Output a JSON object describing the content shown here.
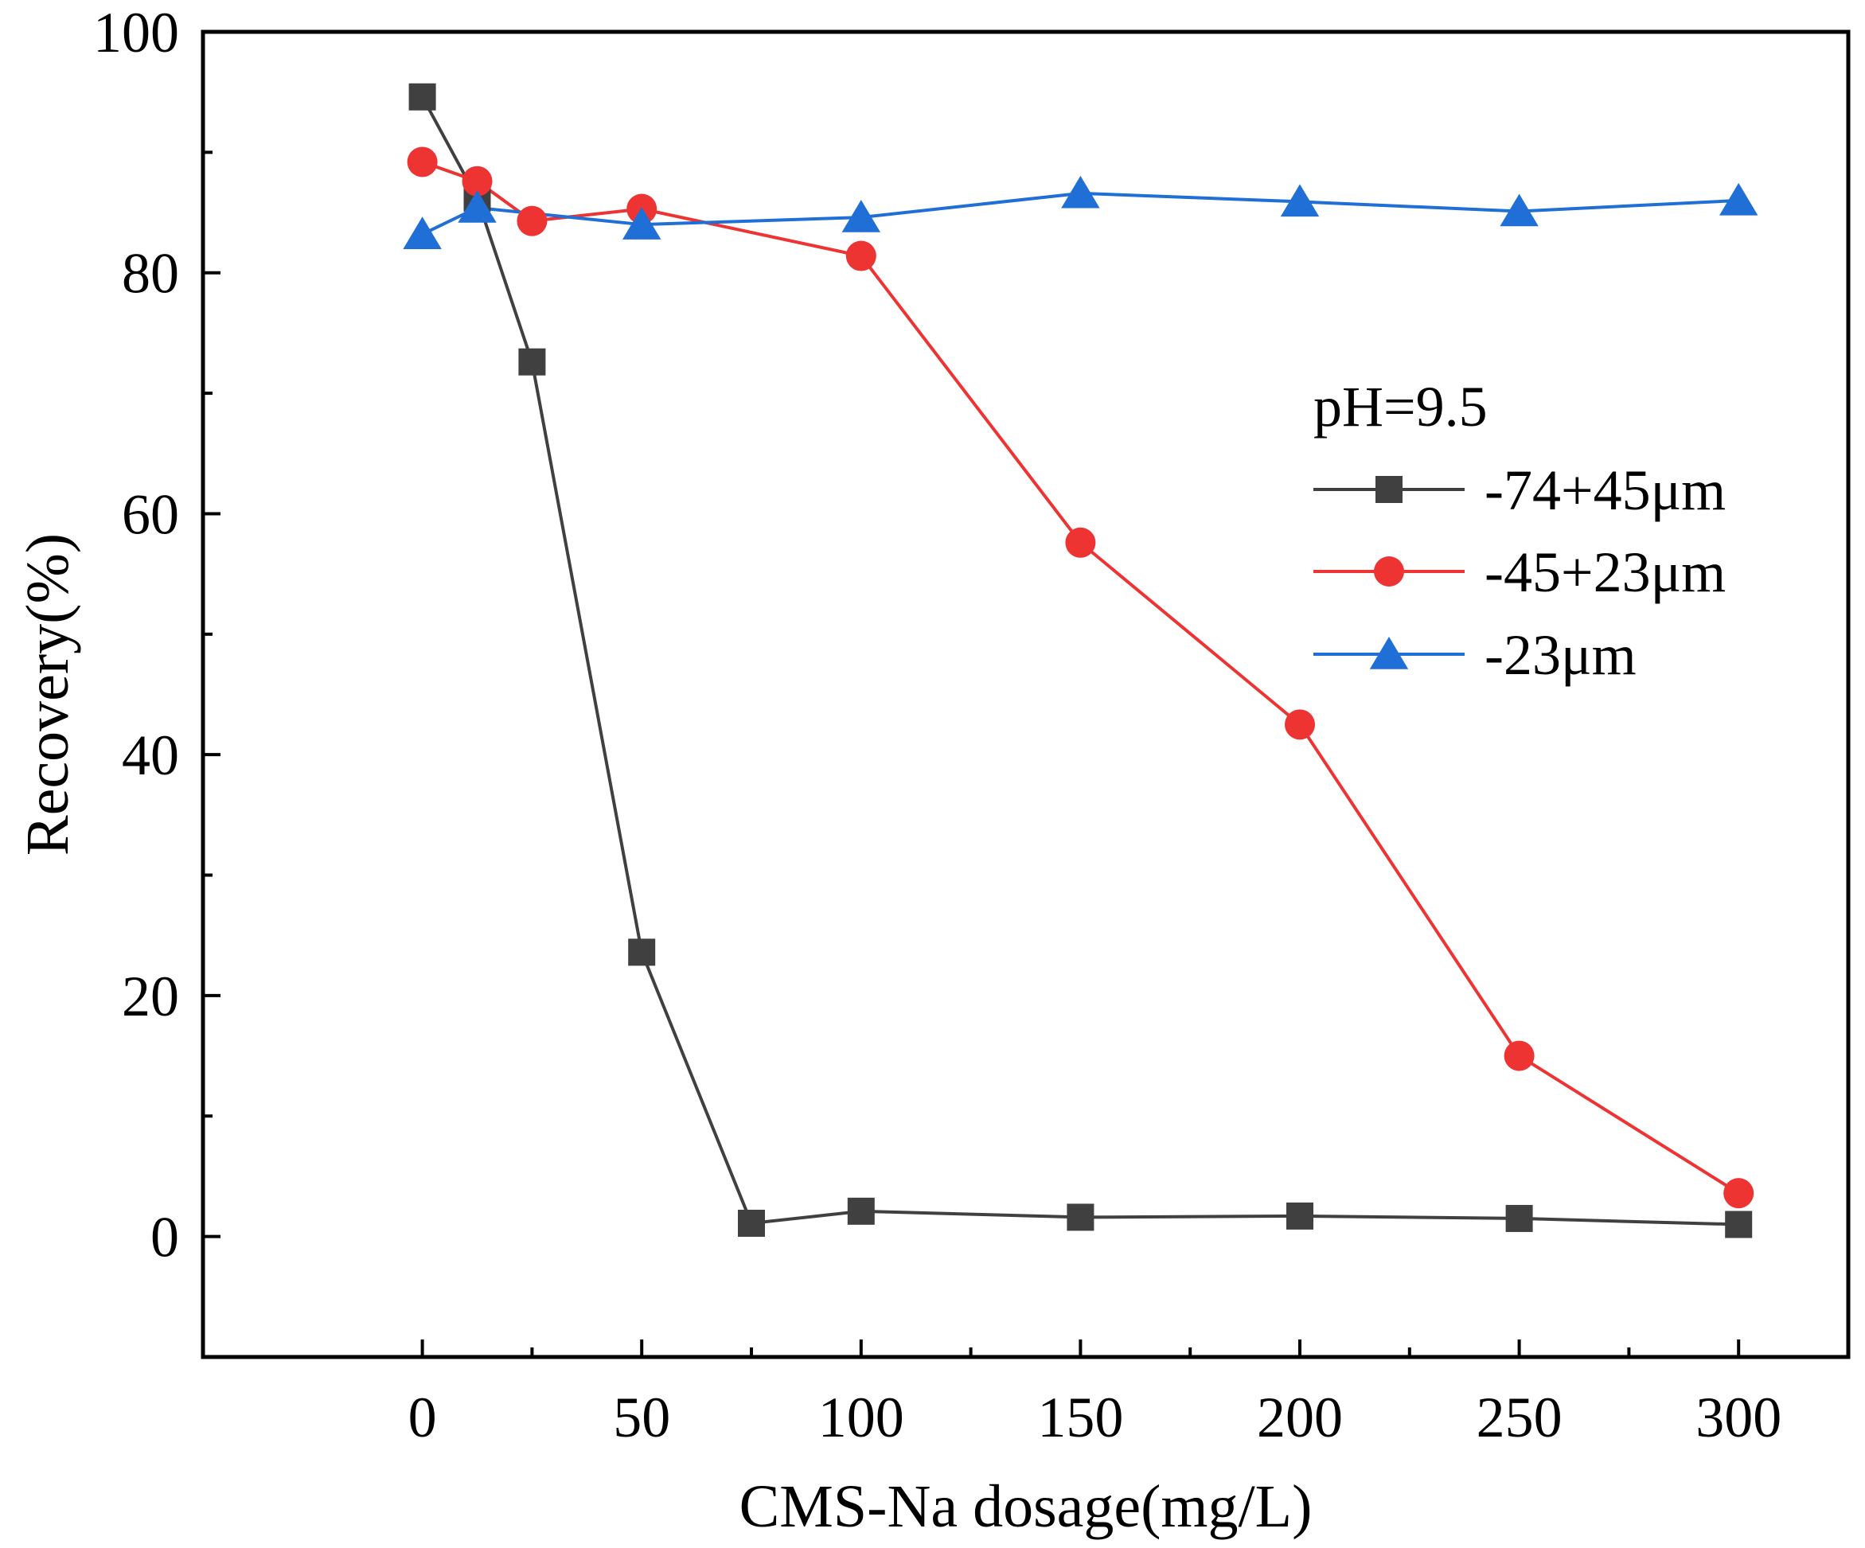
{
  "chart_data": {
    "type": "line",
    "title": "",
    "xlabel": "CMS-Na dosage(mg/L)",
    "ylabel": "Recovery(%)",
    "xlim": [
      -50,
      325
    ],
    "ylim": [
      -10,
      100
    ],
    "xticks": [
      0,
      50,
      100,
      150,
      200,
      250,
      300
    ],
    "yticks": [
      0,
      20,
      40,
      60,
      80,
      100
    ],
    "x_minor_ticks": [
      25,
      75,
      125,
      175,
      225,
      275
    ],
    "y_minor_ticks": [
      10,
      30,
      50,
      70,
      90
    ],
    "grid": false,
    "legend": {
      "position": "right",
      "title": "pH=9.5"
    },
    "series": [
      {
        "name": "-74+45μm",
        "color": "#404040",
        "marker": "square",
        "x": [
          0,
          12.5,
          25,
          50,
          75,
          100,
          150,
          200,
          250,
          300
        ],
        "y": [
          94.6,
          86.2,
          72.6,
          23.6,
          1.1,
          2.1,
          1.6,
          1.7,
          1.5,
          1.0
        ]
      },
      {
        "name": "-45+23μm",
        "color": "#ee3333",
        "marker": "circle",
        "x": [
          0,
          12.5,
          25,
          50,
          100,
          150,
          200,
          250,
          300
        ],
        "y": [
          89.2,
          87.6,
          84.3,
          85.3,
          81.4,
          57.6,
          42.5,
          15.0,
          3.6
        ]
      },
      {
        "name": "-23μm",
        "color": "#1f6fd6",
        "marker": "triangle",
        "x": [
          0,
          12.5,
          50,
          100,
          150,
          200,
          250,
          300
        ],
        "y": [
          83.2,
          85.4,
          84.0,
          84.6,
          86.6,
          85.9,
          85.1,
          86.0
        ]
      }
    ]
  }
}
